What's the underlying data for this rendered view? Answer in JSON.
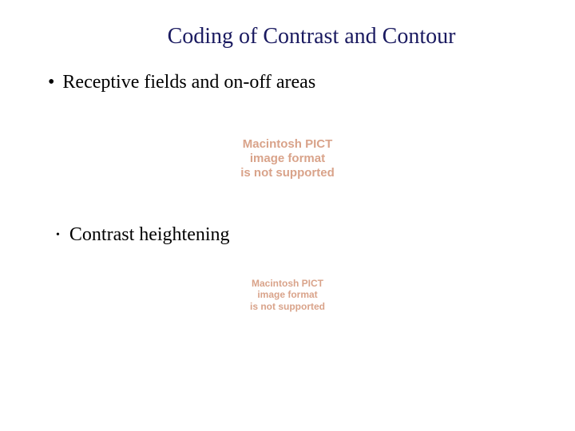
{
  "title": {
    "text": "Coding of Contrast and Contour",
    "color": "#1a1a60",
    "fontsize": 28
  },
  "bullets": [
    {
      "mark": "•",
      "text": "Receptive fields and on-off areas",
      "color": "#000000",
      "fontsize": 24,
      "level": 1
    },
    {
      "mark": "•",
      "text": "Contrast heightening",
      "color": "#000000",
      "fontsize": 24,
      "level": 2
    }
  ],
  "pict_placeholder": {
    "line1": "Macintosh PICT",
    "line2": "image format",
    "line3": "is not supported",
    "color": "#d9a38a",
    "block1_fontsize": 15,
    "block2_fontsize": 12
  },
  "background_color": "#ffffff"
}
